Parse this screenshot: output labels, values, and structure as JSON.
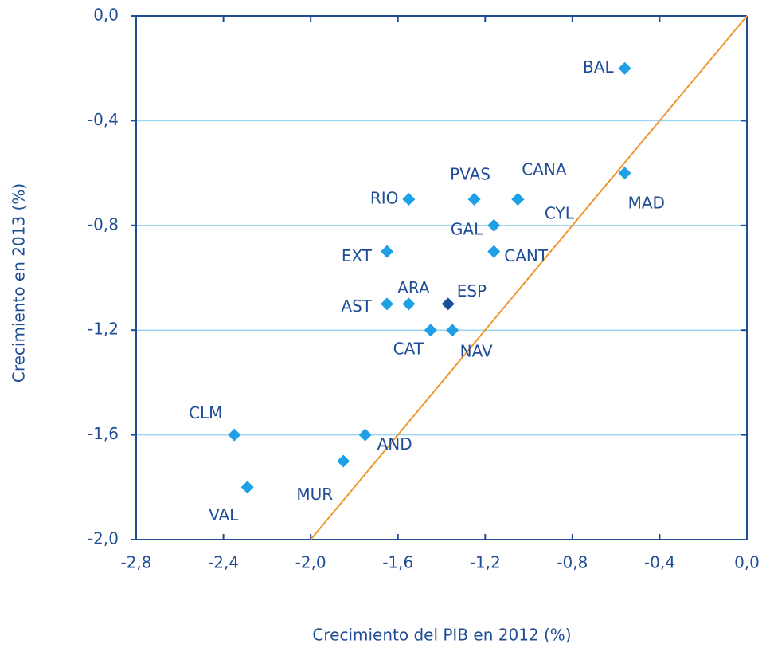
{
  "chart_data": {
    "type": "scatter",
    "xlabel": "Crecimiento del PIB en 2012 (%)",
    "ylabel": "Crecimiento en 2013 (%)",
    "xlim": [
      -2.8,
      0.0
    ],
    "ylim": [
      -2.0,
      0.0
    ],
    "xticks": [
      {
        "value": -2.8,
        "label": "-2,8"
      },
      {
        "value": -2.4,
        "label": "-2,4"
      },
      {
        "value": -2.0,
        "label": "-2,0"
      },
      {
        "value": -1.6,
        "label": "-1,6"
      },
      {
        "value": -1.2,
        "label": "-1,2"
      },
      {
        "value": -0.8,
        "label": "-0,8"
      },
      {
        "value": -0.4,
        "label": "-0,4"
      },
      {
        "value": 0.0,
        "label": "0,0"
      }
    ],
    "yticks": [
      {
        "value": 0.0,
        "label": "0,0"
      },
      {
        "value": -0.4,
        "label": "-0,4"
      },
      {
        "value": -0.8,
        "label": "-0,8"
      },
      {
        "value": -1.2,
        "label": "-1,2"
      },
      {
        "value": -1.6,
        "label": "-1,6"
      },
      {
        "value": -2.0,
        "label": "-2,0"
      }
    ],
    "grid": true,
    "reference_line": {
      "x": [
        -2.0,
        0.0
      ],
      "y": [
        -2.0,
        0.0
      ],
      "color": "#f0962d"
    },
    "points": [
      {
        "label": "BAL",
        "x": -0.56,
        "y": -0.2,
        "color": "#1ea0e6"
      },
      {
        "label": "MAD",
        "x": -0.56,
        "y": -0.6,
        "color": "#1ea0e6"
      },
      {
        "label": "CANA",
        "x": -1.05,
        "y": -0.7,
        "color": "#1ea0e6"
      },
      {
        "label": "CYL",
        "x": -1.05,
        "y": -0.7,
        "color": "#1ea0e6"
      },
      {
        "label": "PVAS",
        "x": -1.25,
        "y": -0.7,
        "color": "#1ea0e6"
      },
      {
        "label": "RIO",
        "x": -1.55,
        "y": -0.7,
        "color": "#1ea0e6"
      },
      {
        "label": "GAL",
        "x": -1.16,
        "y": -0.8,
        "color": "#1ea0e6"
      },
      {
        "label": "CANT",
        "x": -1.16,
        "y": -0.9,
        "color": "#1ea0e6"
      },
      {
        "label": "EXT",
        "x": -1.65,
        "y": -0.9,
        "color": "#1ea0e6"
      },
      {
        "label": "ARA",
        "x": -1.55,
        "y": -1.1,
        "color": "#1ea0e6"
      },
      {
        "label": "AST",
        "x": -1.65,
        "y": -1.1,
        "color": "#1ea0e6"
      },
      {
        "label": "ESP",
        "x": -1.37,
        "y": -1.1,
        "color": "#1a4f9c"
      },
      {
        "label": "CAT",
        "x": -1.45,
        "y": -1.2,
        "color": "#1ea0e6"
      },
      {
        "label": "NAV",
        "x": -1.35,
        "y": -1.2,
        "color": "#1ea0e6"
      },
      {
        "label": "CLM",
        "x": -2.35,
        "y": -1.6,
        "color": "#1ea0e6"
      },
      {
        "label": "AND",
        "x": -1.75,
        "y": -1.6,
        "color": "#1ea0e6"
      },
      {
        "label": "MUR",
        "x": -1.85,
        "y": -1.7,
        "color": "#1ea0e6"
      },
      {
        "label": "VAL",
        "x": -2.29,
        "y": -1.8,
        "color": "#1ea0e6"
      }
    ]
  }
}
